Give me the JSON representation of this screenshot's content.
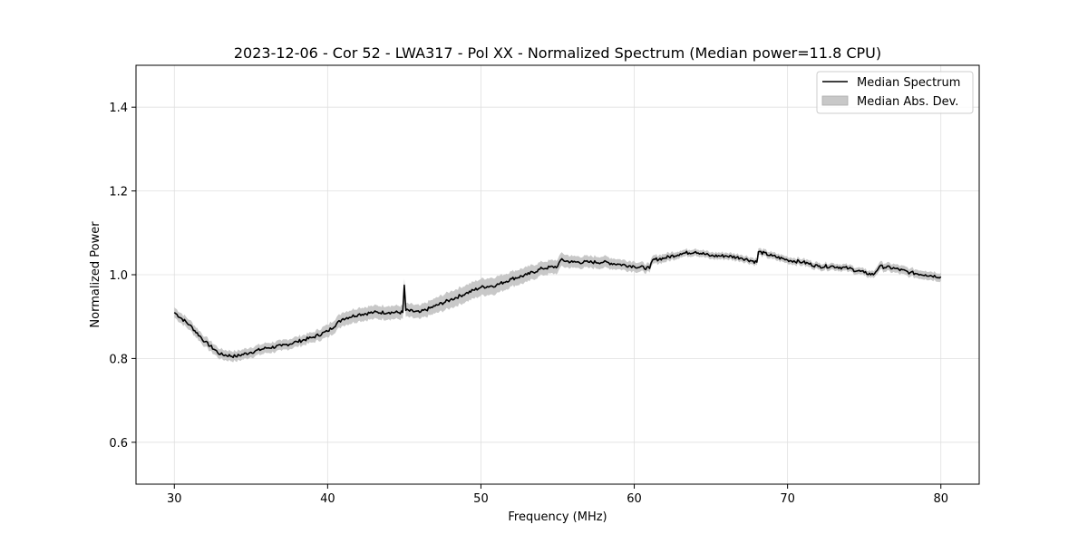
{
  "chart_data": {
    "type": "line",
    "title": "2023-12-06 - Cor 52 - LWA317 - Pol XX - Normalized Spectrum (Median power=11.8 CPU)",
    "xlabel": "Frequency (MHz)",
    "ylabel": "Normalized Power",
    "xlim": [
      27.5,
      82.5
    ],
    "ylim": [
      0.5,
      1.5
    ],
    "xticks": [
      30,
      40,
      50,
      60,
      70,
      80
    ],
    "yticks": [
      0.6,
      0.8,
      1.0,
      1.2,
      1.4
    ],
    "xtick_labels": [
      "30",
      "40",
      "50",
      "60",
      "70",
      "80"
    ],
    "ytick_labels": [
      "0.6",
      "0.8",
      "1.0",
      "1.2",
      "1.4"
    ],
    "grid": true,
    "legend_position": "top-right",
    "legend": [
      "Median Spectrum",
      "Median Abs. Dev."
    ],
    "series": [
      {
        "name": "Median Spectrum",
        "color": "#000000",
        "x": [
          30,
          31,
          32,
          33,
          34,
          35,
          36,
          37,
          38,
          39,
          40,
          41,
          42,
          43,
          44,
          44.9,
          45,
          45.1,
          46,
          47,
          48,
          49,
          50,
          51,
          52,
          53,
          54,
          55,
          55.2,
          56,
          57,
          58,
          59,
          60,
          61,
          61.2,
          62,
          63,
          64,
          65,
          66,
          67,
          68,
          68.1,
          69,
          70,
          71,
          72,
          73,
          74,
          75,
          75.6,
          76,
          77,
          78,
          79,
          80
        ],
        "values": [
          0.91,
          0.88,
          0.84,
          0.81,
          0.805,
          0.815,
          0.825,
          0.83,
          0.84,
          0.85,
          0.865,
          0.895,
          0.905,
          0.91,
          0.91,
          0.91,
          0.975,
          0.915,
          0.91,
          0.925,
          0.94,
          0.955,
          0.97,
          0.975,
          0.99,
          1.0,
          1.015,
          1.02,
          1.035,
          1.03,
          1.03,
          1.03,
          1.025,
          1.02,
          1.015,
          1.035,
          1.04,
          1.05,
          1.055,
          1.045,
          1.045,
          1.04,
          1.03,
          1.055,
          1.045,
          1.035,
          1.03,
          1.02,
          1.02,
          1.015,
          1.005,
          1.0,
          1.02,
          1.015,
          1.005,
          1.0,
          0.995
        ]
      }
    ],
    "band": {
      "name": "Median Abs. Dev.",
      "color": "#c8c8c8",
      "half_width": [
        0.012,
        0.012,
        0.012,
        0.012,
        0.012,
        0.012,
        0.012,
        0.012,
        0.012,
        0.012,
        0.015,
        0.016,
        0.016,
        0.016,
        0.016,
        0.016,
        0.016,
        0.016,
        0.016,
        0.018,
        0.02,
        0.02,
        0.02,
        0.02,
        0.018,
        0.018,
        0.016,
        0.016,
        0.016,
        0.014,
        0.014,
        0.014,
        0.012,
        0.012,
        0.01,
        0.01,
        0.01,
        0.008,
        0.008,
        0.008,
        0.008,
        0.008,
        0.008,
        0.008,
        0.008,
        0.008,
        0.008,
        0.008,
        0.008,
        0.008,
        0.008,
        0.008,
        0.01,
        0.01,
        0.01,
        0.01,
        0.01
      ]
    }
  }
}
